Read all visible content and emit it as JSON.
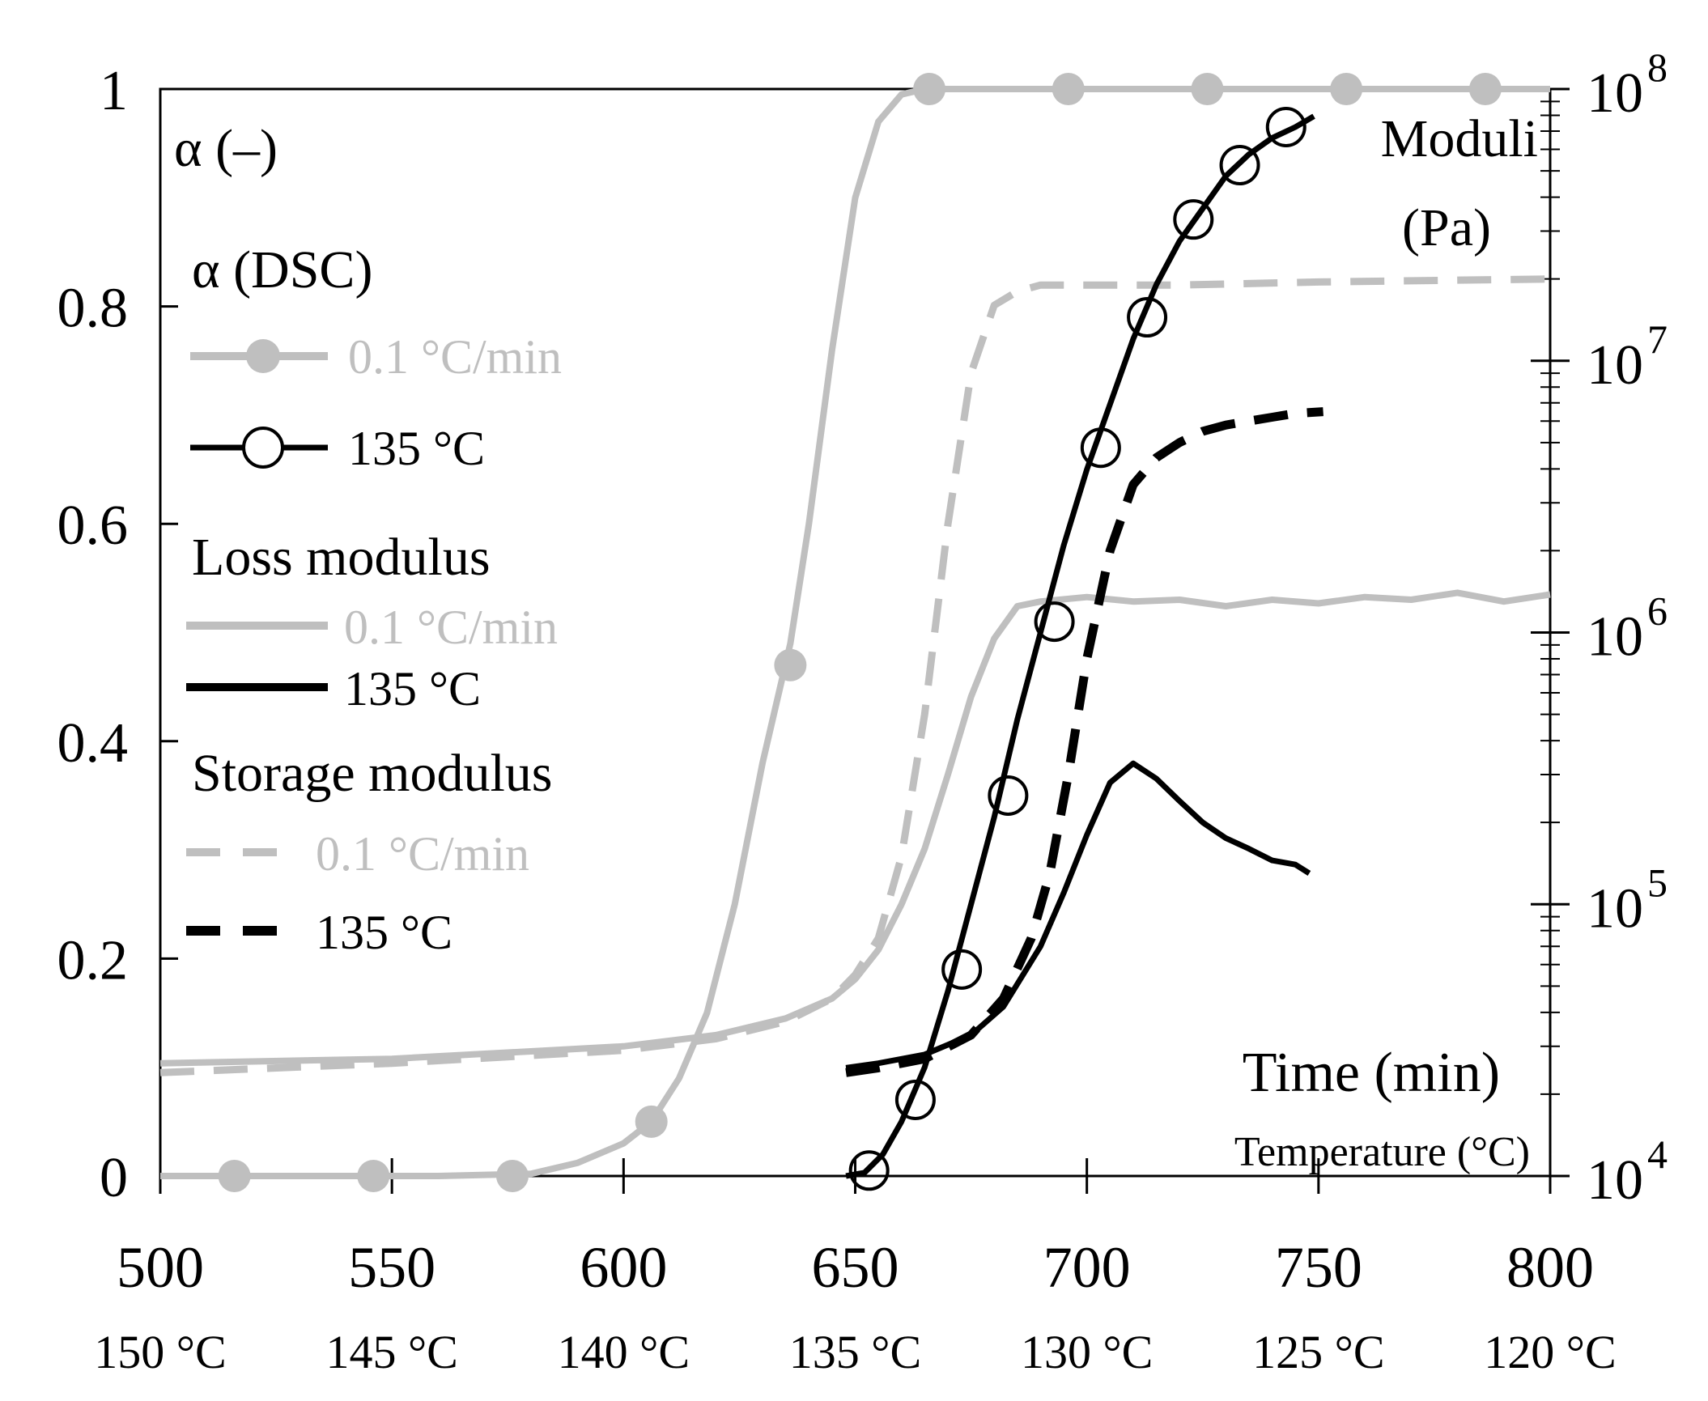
{
  "chart_data": {
    "type": "line",
    "xlabel": "Time (min)",
    "xlabel_secondary": "Temperature (°C)",
    "xlim": [
      500,
      800
    ],
    "x_ticks": [
      "500",
      "550",
      "600",
      "650",
      "700",
      "750",
      "800"
    ],
    "x_ticks_secondary": [
      "150 °C",
      "145 °C",
      "140 °C",
      "135 °C",
      "130 °C",
      "125 °C",
      "120 °C"
    ],
    "ylabel_left": "α (–)",
    "ylim_left": [
      0,
      1
    ],
    "y_ticks_left": [
      "0",
      "0.2",
      "0.4",
      "0.6",
      "0.8",
      "1"
    ],
    "ylabel_right": "Moduli",
    "ylabel_right_unit": "(Pa)",
    "ylim_right_log": [
      10000,
      100000000
    ],
    "y_ticks_right": [
      {
        "base": "10",
        "exp": "4"
      },
      {
        "base": "10",
        "exp": "5"
      },
      {
        "base": "10",
        "exp": "6"
      },
      {
        "base": "10",
        "exp": "7"
      },
      {
        "base": "10",
        "exp": "8"
      }
    ],
    "legend": {
      "alpha_title": "α (DSC)",
      "loss_title": "Loss modulus",
      "storage_title": "Storage modulus",
      "ramp_label": "0.1 °C/min",
      "iso_label": "135 °C"
    },
    "colors": {
      "ramp": "#bfbfbf",
      "iso": "#000000"
    },
    "series": [
      {
        "name": "α (DSC) 0.1 °C/min",
        "axis": "left",
        "style": "solid",
        "color": "#bfbfbf",
        "marker": "filled-circle",
        "x": [
          500,
          560,
          580,
          590,
          600,
          606,
          612,
          618,
          624,
          630,
          636,
          640,
          645,
          650,
          655,
          660,
          665,
          670,
          680,
          700,
          750,
          800
        ],
        "y": [
          0,
          0,
          0.002,
          0.012,
          0.03,
          0.05,
          0.09,
          0.15,
          0.25,
          0.38,
          0.49,
          0.6,
          0.76,
          0.9,
          0.97,
          0.995,
          1,
          1,
          1,
          1,
          1,
          1
        ],
        "markers_x": [
          516,
          546,
          576,
          606,
          636,
          666,
          696,
          726,
          756,
          786
        ],
        "markers_y": [
          0,
          0,
          0,
          0.05,
          0.47,
          1,
          1,
          1,
          1,
          1
        ]
      },
      {
        "name": "α (DSC) 135 °C",
        "axis": "left",
        "style": "solid",
        "color": "#000000",
        "marker": "open-circle",
        "x": [
          648,
          652,
          656,
          660,
          665,
          670,
          675,
          680,
          685,
          690,
          695,
          700,
          705,
          710,
          715,
          720,
          725,
          730,
          735,
          740,
          745,
          749
        ],
        "y": [
          0,
          0.003,
          0.02,
          0.05,
          0.1,
          0.17,
          0.25,
          0.33,
          0.42,
          0.5,
          0.58,
          0.65,
          0.71,
          0.77,
          0.82,
          0.86,
          0.89,
          0.92,
          0.94,
          0.955,
          0.965,
          0.975
        ],
        "markers_x": [
          653,
          663,
          673,
          683,
          693,
          703,
          713,
          723,
          733,
          743
        ],
        "markers_y": [
          0.005,
          0.07,
          0.19,
          0.35,
          0.51,
          0.67,
          0.79,
          0.88,
          0.93,
          0.965
        ]
      },
      {
        "name": "Loss modulus 0.1 °C/min",
        "axis": "right",
        "style": "solid",
        "color": "#bfbfbf",
        "x": [
          500,
          550,
          600,
          620,
          635,
          645,
          650,
          655,
          660,
          665,
          670,
          675,
          680,
          685,
          690,
          700,
          710,
          720,
          730,
          740,
          750,
          760,
          770,
          780,
          790,
          800
        ],
        "y": [
          26000,
          27000,
          30000,
          33000,
          38000,
          45000,
          53000,
          68000,
          100000,
          160000,
          300000,
          580000,
          950000,
          1250000,
          1300000,
          1350000,
          1300000,
          1320000,
          1250000,
          1320000,
          1280000,
          1350000,
          1320000,
          1400000,
          1300000,
          1380000
        ]
      },
      {
        "name": "Loss modulus 135 °C",
        "axis": "right",
        "style": "solid",
        "color": "#000000",
        "x": [
          648,
          655,
          665,
          675,
          682,
          690,
          695,
          700,
          705,
          710,
          715,
          720,
          725,
          730,
          735,
          740,
          745,
          748
        ],
        "y": [
          25000,
          26000,
          28000,
          33000,
          42000,
          70000,
          110000,
          180000,
          280000,
          330000,
          290000,
          240000,
          200000,
          175000,
          160000,
          145000,
          140000,
          130000
        ]
      },
      {
        "name": "Storage modulus 0.1 °C/min",
        "axis": "right",
        "style": "dashed",
        "color": "#bfbfbf",
        "x": [
          500,
          550,
          600,
          620,
          635,
          645,
          650,
          655,
          660,
          665,
          670,
          675,
          680,
          685,
          690,
          700,
          720,
          750,
          800
        ],
        "y": [
          24000,
          26000,
          29000,
          32000,
          37000,
          45000,
          55000,
          75000,
          150000,
          500000,
          2500000,
          9000000,
          16000000,
          18000000,
          19000000,
          19000000,
          19000000,
          19500000,
          20000000
        ]
      },
      {
        "name": "Storage modulus 135 °C",
        "axis": "right",
        "style": "dashed",
        "color": "#000000",
        "x": [
          648,
          655,
          665,
          675,
          682,
          688,
          692,
          696,
          700,
          705,
          710,
          715,
          720,
          725,
          730,
          735,
          740,
          745,
          751
        ],
        "y": [
          24000,
          25000,
          27000,
          33000,
          45000,
          75000,
          130000,
          300000,
          800000,
          2000000,
          3500000,
          4400000,
          5000000,
          5500000,
          5800000,
          6000000,
          6200000,
          6400000,
          6500000
        ]
      }
    ]
  }
}
